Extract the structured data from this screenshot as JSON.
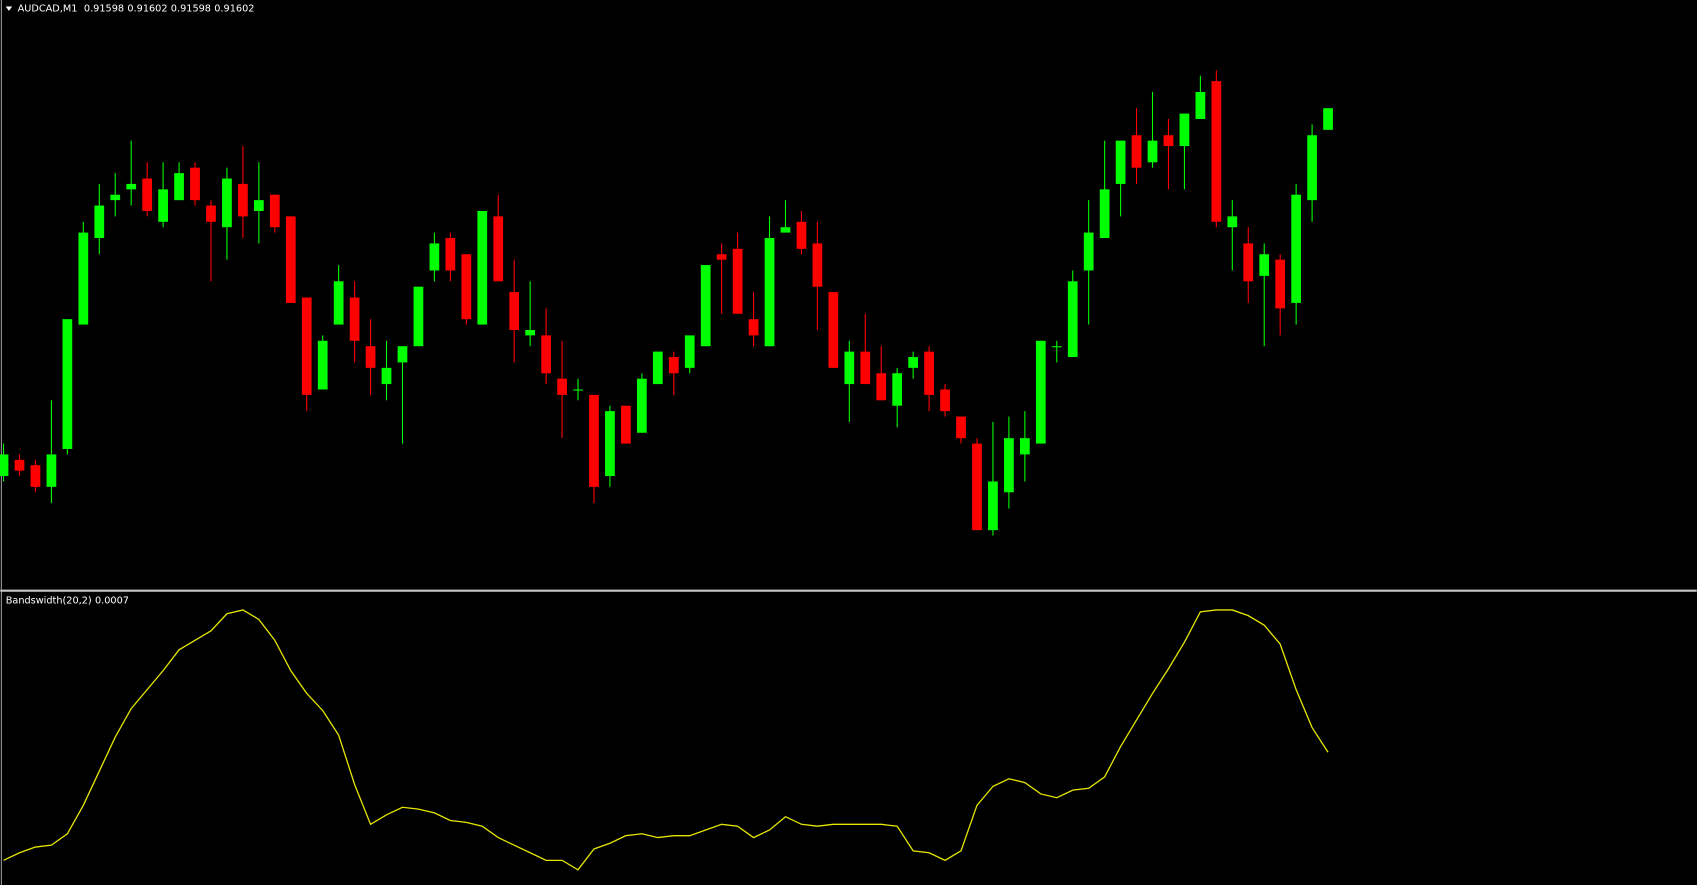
{
  "chart_data": [
    {
      "type": "candlestick",
      "title": "AUDCAD,M1",
      "quote": [
        0.91598,
        0.91602,
        0.91598,
        0.91602
      ],
      "up_color": "#00ff00",
      "down_color": "#ff0000",
      "ylim": [
        0.91513,
        0.91622
      ],
      "open": [
        0.91534,
        0.91537,
        0.91536,
        0.91532,
        0.91539,
        0.91562,
        0.91578,
        0.91585,
        0.91587,
        0.91589,
        0.91581,
        0.91585,
        0.91591,
        0.91584,
        0.9158,
        0.91588,
        0.91583,
        0.91586,
        0.91582,
        0.91567,
        0.9155,
        0.91562,
        0.91567,
        0.91558,
        0.91551,
        0.91555,
        0.91558,
        0.91572,
        0.91578,
        0.91575,
        0.91562,
        0.91582,
        0.91568,
        0.9156,
        0.9156,
        0.91552,
        0.9155,
        0.91549,
        0.91534,
        0.91547,
        0.91542,
        0.91551,
        0.91556,
        0.91554,
        0.91558,
        0.91575,
        0.91576,
        0.91563,
        0.91558,
        0.91579,
        0.91581,
        0.91577,
        0.91568,
        0.91551,
        0.91557,
        0.91553,
        0.91547,
        0.91554,
        0.91557,
        0.9155,
        0.91545,
        0.9154,
        0.91524,
        0.91531,
        0.91538,
        0.9154,
        0.91558,
        0.91556,
        0.91572,
        0.91578,
        0.91588,
        0.91597,
        0.91592,
        0.91597,
        0.91595,
        0.916,
        0.91607,
        0.9158,
        0.91577,
        0.91571,
        0.91574,
        0.91566,
        0.91585,
        0.91598
      ],
      "high": [
        0.9154,
        0.91538,
        0.91537,
        0.91548,
        0.91563,
        0.91581,
        0.91588,
        0.9159,
        0.91596,
        0.91592,
        0.91592,
        0.91592,
        0.91592,
        0.91585,
        0.91591,
        0.91595,
        0.91592,
        0.91586,
        0.91582,
        0.91567,
        0.9156,
        0.91573,
        0.9157,
        0.91563,
        0.91559,
        0.91558,
        0.91569,
        0.91579,
        0.91579,
        0.91575,
        0.91583,
        0.91586,
        0.91574,
        0.9157,
        0.91565,
        0.91559,
        0.91552,
        0.91549,
        0.91547,
        0.91547,
        0.91553,
        0.91557,
        0.91557,
        0.9156,
        0.91573,
        0.91577,
        0.91579,
        0.91568,
        0.91582,
        0.91585,
        0.91583,
        0.91581,
        0.91568,
        0.91559,
        0.91564,
        0.91558,
        0.91554,
        0.91557,
        0.91558,
        0.91551,
        0.91545,
        0.91541,
        0.91544,
        0.91545,
        0.91546,
        0.91559,
        0.91559,
        0.91572,
        0.91585,
        0.91596,
        0.91596,
        0.91602,
        0.91605,
        0.916,
        0.91601,
        0.91608,
        0.91609,
        0.91585,
        0.9158,
        0.91577,
        0.91575,
        0.91588,
        0.91599,
        0.91602
      ],
      "low": [
        0.91533,
        0.91534,
        0.91531,
        0.91529,
        0.91538,
        0.91562,
        0.91575,
        0.91582,
        0.91584,
        0.91582,
        0.9158,
        0.91585,
        0.91584,
        0.9157,
        0.91574,
        0.91578,
        0.91577,
        0.91579,
        0.91566,
        0.91546,
        0.9155,
        0.91562,
        0.91555,
        0.91549,
        0.91548,
        0.9154,
        0.91558,
        0.9157,
        0.9157,
        0.91562,
        0.91562,
        0.9157,
        0.91555,
        0.91558,
        0.91551,
        0.91541,
        0.91548,
        0.91529,
        0.91532,
        0.9154,
        0.91542,
        0.91551,
        0.91549,
        0.91553,
        0.91558,
        0.91564,
        0.91564,
        0.91558,
        0.91558,
        0.91579,
        0.91575,
        0.91561,
        0.91554,
        0.91544,
        0.91551,
        0.91548,
        0.91543,
        0.91552,
        0.91546,
        0.91545,
        0.9154,
        0.91524,
        0.91523,
        0.91528,
        0.91533,
        0.9154,
        0.91555,
        0.91556,
        0.91562,
        0.91578,
        0.91582,
        0.91588,
        0.91591,
        0.91587,
        0.91587,
        0.916,
        0.9158,
        0.91572,
        0.91566,
        0.91558,
        0.9156,
        0.91562,
        0.91581,
        0.91598
      ],
      "close": [
        0.91538,
        0.91535,
        0.91532,
        0.91538,
        0.91563,
        0.91579,
        0.91584,
        0.91586,
        0.91588,
        0.91583,
        0.91587,
        0.9159,
        0.91585,
        0.91581,
        0.91589,
        0.91582,
        0.91585,
        0.9158,
        0.91566,
        0.91549,
        0.91559,
        0.9157,
        0.91559,
        0.91554,
        0.91554,
        0.91558,
        0.91569,
        0.91577,
        0.91572,
        0.91563,
        0.91583,
        0.9157,
        0.91561,
        0.91561,
        0.91553,
        0.91549,
        0.9155,
        0.91532,
        0.91546,
        0.9154,
        0.91552,
        0.91557,
        0.91553,
        0.9156,
        0.91573,
        0.91574,
        0.91564,
        0.9156,
        0.91578,
        0.9158,
        0.91576,
        0.91569,
        0.91554,
        0.91557,
        0.91551,
        0.91548,
        0.91553,
        0.91556,
        0.91549,
        0.91546,
        0.91541,
        0.91524,
        0.91533,
        0.91541,
        0.91541,
        0.91559,
        0.91558,
        0.9157,
        0.91579,
        0.91587,
        0.91596,
        0.91591,
        0.91596,
        0.91595,
        0.91601,
        0.91605,
        0.91581,
        0.91582,
        0.9157,
        0.91575,
        0.91565,
        0.91586,
        0.91597,
        0.91602
      ]
    },
    {
      "type": "line",
      "title": "Bandswidth(20,2)",
      "current": 0.0007,
      "ylim": [
        0,
        0.00154
      ],
      "series": [
        {
          "color": "#e6e600",
          "values": [
            0.00013,
            0.00017,
            0.0002,
            0.00021,
            0.00027,
            0.00042,
            0.0006,
            0.00078,
            0.00093,
            0.00103,
            0.00113,
            0.00124,
            0.00129,
            0.00134,
            0.00143,
            0.00145,
            0.0014,
            0.00129,
            0.00113,
            0.00101,
            0.00092,
            0.00079,
            0.00053,
            0.00032,
            0.00037,
            0.00041,
            0.0004,
            0.00038,
            0.00034,
            0.00033,
            0.00031,
            0.00025,
            0.00021,
            0.00017,
            0.00013,
            0.00013,
            8e-05,
            0.00019,
            0.00022,
            0.00026,
            0.00027,
            0.00025,
            0.00026,
            0.00026,
            0.00029,
            0.00032,
            0.00031,
            0.00025,
            0.00029,
            0.00036,
            0.00032,
            0.00031,
            0.00032,
            0.00032,
            0.00032,
            0.00032,
            0.00031,
            0.00018,
            0.00017,
            0.00013,
            0.00018,
            0.00042,
            0.00052,
            0.00056,
            0.00054,
            0.00048,
            0.00046,
            0.0005,
            0.00051,
            0.00057,
            0.00073,
            0.00087,
            0.00101,
            0.00114,
            0.00128,
            0.00144,
            0.00145,
            0.00145,
            0.00142,
            0.00137,
            0.00127,
            0.00103,
            0.00083,
            0.0007
          ]
        }
      ]
    }
  ]
}
